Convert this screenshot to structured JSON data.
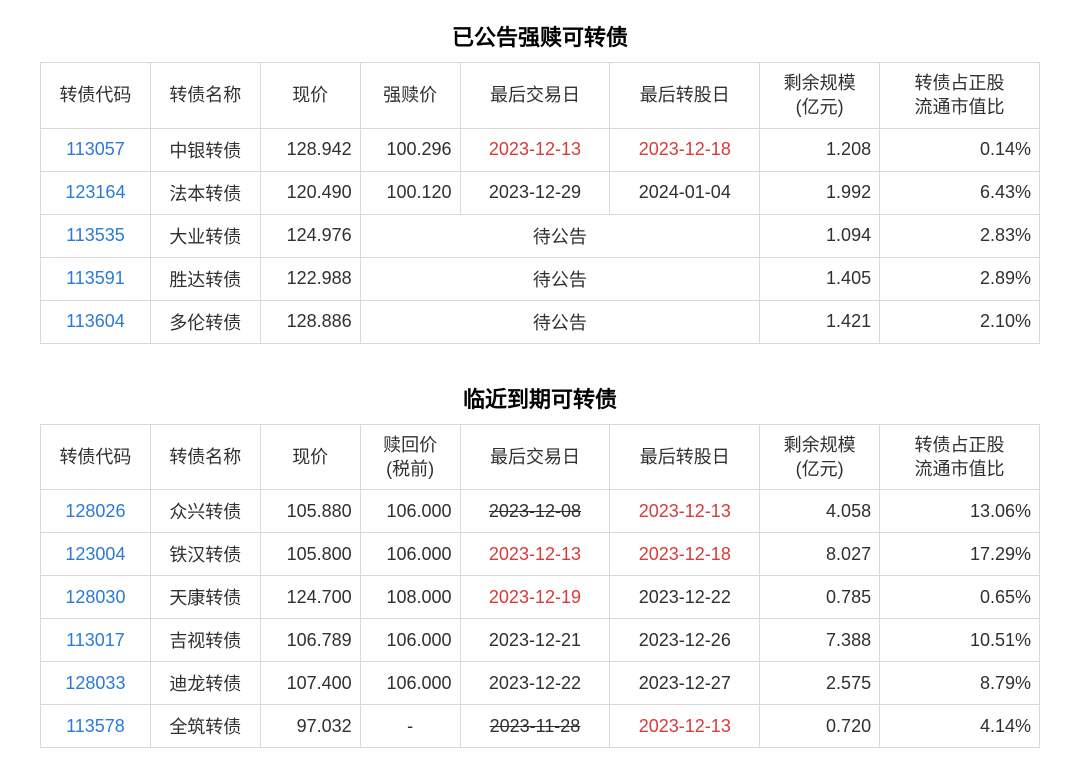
{
  "colors": {
    "text": "#303030",
    "link": "#2b7bd6",
    "red": "#d93a3a",
    "border": "#d9d9d9",
    "bg": "#ffffff"
  },
  "fontsize": {
    "title": 22,
    "body": 18
  },
  "table1": {
    "title": "已公告强赎可转债",
    "columns": [
      "转债代码",
      "转债名称",
      "现价",
      "强赎价",
      "最后交易日",
      "最后转股日",
      "剩余规模\n(亿元)",
      "转债占正股\n流通市值比"
    ],
    "rows": [
      {
        "code": "113057",
        "name": "中银转债",
        "price": "128.942",
        "redeem": "100.296",
        "last_trade": "2023-12-13",
        "last_trade_red": true,
        "last_conv": "2023-12-18",
        "last_conv_red": true,
        "scale": "1.208",
        "ratio": "0.14%",
        "merged": false
      },
      {
        "code": "123164",
        "name": "法本转债",
        "price": "120.490",
        "redeem": "100.120",
        "last_trade": "2023-12-29",
        "last_trade_red": false,
        "last_conv": "2024-01-04",
        "last_conv_red": false,
        "scale": "1.992",
        "ratio": "6.43%",
        "merged": false
      },
      {
        "code": "113535",
        "name": "大业转债",
        "price": "124.976",
        "merged": true,
        "merged_text": "待公告",
        "scale": "1.094",
        "ratio": "2.83%"
      },
      {
        "code": "113591",
        "name": "胜达转债",
        "price": "122.988",
        "merged": true,
        "merged_text": "待公告",
        "scale": "1.405",
        "ratio": "2.89%"
      },
      {
        "code": "113604",
        "name": "多伦转债",
        "price": "128.886",
        "merged": true,
        "merged_text": "待公告",
        "scale": "1.421",
        "ratio": "2.10%"
      }
    ]
  },
  "table2": {
    "title": "临近到期可转债",
    "columns": [
      "转债代码",
      "转债名称",
      "现价",
      "赎回价\n(税前)",
      "最后交易日",
      "最后转股日",
      "剩余规模\n(亿元)",
      "转债占正股\n流通市值比"
    ],
    "rows": [
      {
        "code": "128026",
        "name": "众兴转债",
        "price": "105.880",
        "redeem": "106.000",
        "last_trade": "2023-12-08",
        "last_trade_strike": true,
        "last_trade_red": false,
        "last_conv": "2023-12-13",
        "last_conv_red": true,
        "scale": "4.058",
        "ratio": "13.06%"
      },
      {
        "code": "123004",
        "name": "铁汉转债",
        "price": "105.800",
        "redeem": "106.000",
        "last_trade": "2023-12-13",
        "last_trade_strike": false,
        "last_trade_red": true,
        "last_conv": "2023-12-18",
        "last_conv_red": true,
        "scale": "8.027",
        "ratio": "17.29%"
      },
      {
        "code": "128030",
        "name": "天康转债",
        "price": "124.700",
        "redeem": "108.000",
        "last_trade": "2023-12-19",
        "last_trade_strike": false,
        "last_trade_red": true,
        "last_conv": "2023-12-22",
        "last_conv_red": false,
        "scale": "0.785",
        "ratio": "0.65%"
      },
      {
        "code": "113017",
        "name": "吉视转债",
        "price": "106.789",
        "redeem": "106.000",
        "last_trade": "2023-12-21",
        "last_trade_strike": false,
        "last_trade_red": false,
        "last_conv": "2023-12-26",
        "last_conv_red": false,
        "scale": "7.388",
        "ratio": "10.51%"
      },
      {
        "code": "128033",
        "name": "迪龙转债",
        "price": "107.400",
        "redeem": "106.000",
        "last_trade": "2023-12-22",
        "last_trade_strike": false,
        "last_trade_red": false,
        "last_conv": "2023-12-27",
        "last_conv_red": false,
        "scale": "2.575",
        "ratio": "8.79%"
      },
      {
        "code": "113578",
        "name": "全筑转债",
        "price": "97.032",
        "redeem": "-",
        "last_trade": "2023-11-28",
        "last_trade_strike": true,
        "last_trade_red": false,
        "last_conv": "2023-12-13",
        "last_conv_red": true,
        "scale": "0.720",
        "ratio": "4.14%"
      }
    ]
  }
}
